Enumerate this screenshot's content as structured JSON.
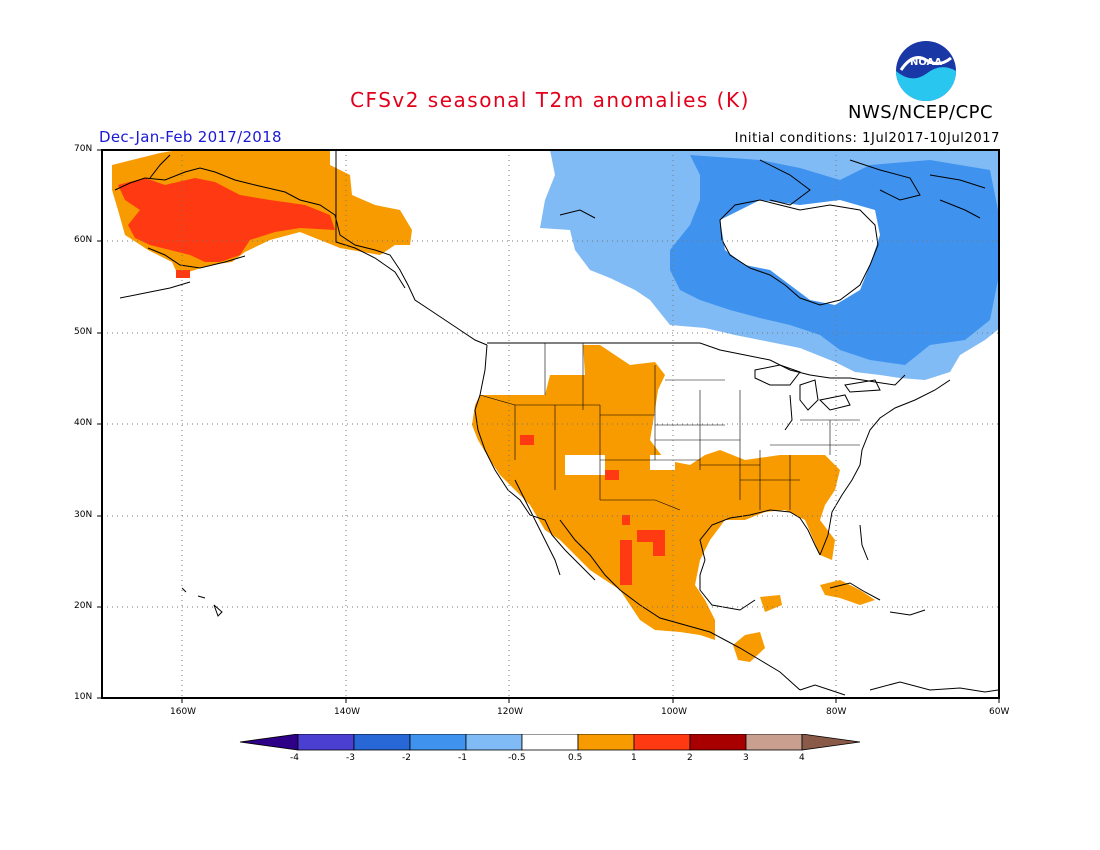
{
  "header": {
    "title": "CFSv2 seasonal T2m anomalies (K)",
    "agency": "NWS/NCEP/CPC",
    "season": "Dec-Jan-Feb 2017/2018",
    "initial_conditions": "Initial conditions: 1Jul2017-10Jul2017",
    "logo_text": "NOAA"
  },
  "axes": {
    "lat_labels": [
      "70N",
      "60N",
      "50N",
      "40N",
      "30N",
      "20N",
      "10N"
    ],
    "lon_labels": [
      "160W",
      "140W",
      "120W",
      "100W",
      "80W",
      "60W"
    ]
  },
  "colorbar": {
    "labels": [
      "-4",
      "-3",
      "-2",
      "-1",
      "-0.5",
      "0.5",
      "1",
      "2",
      "3",
      "4"
    ],
    "colors": {
      "below_min": "#2d0087",
      "b1": "#4b3fd1",
      "b2": "#2767d6",
      "b3": "#3f93ef",
      "b4": "#80bbf6",
      "neutral": "#ffffff",
      "c1": "#f79b00",
      "c2": "#ff3a12",
      "c3": "#a80000",
      "c4": "#c9a08f",
      "above_max": "#8a5a48"
    }
  },
  "regions": [
    {
      "name": "alaska-warm",
      "category": "0.5 to 1",
      "color": "#f79b00"
    },
    {
      "name": "alaska-very-warm",
      "category": "1 to 2",
      "color": "#ff3a12"
    },
    {
      "name": "canada-cool",
      "category": "-1 to -0.5",
      "color": "#80bbf6"
    },
    {
      "name": "canada-colder",
      "category": "-2 to -1",
      "color": "#3f93ef"
    },
    {
      "name": "southern-us-mexico-warm",
      "category": "0.5 to 1",
      "color": "#f79b00"
    },
    {
      "name": "caribbean-warm",
      "category": "0.5 to 1",
      "color": "#f79b00"
    }
  ]
}
